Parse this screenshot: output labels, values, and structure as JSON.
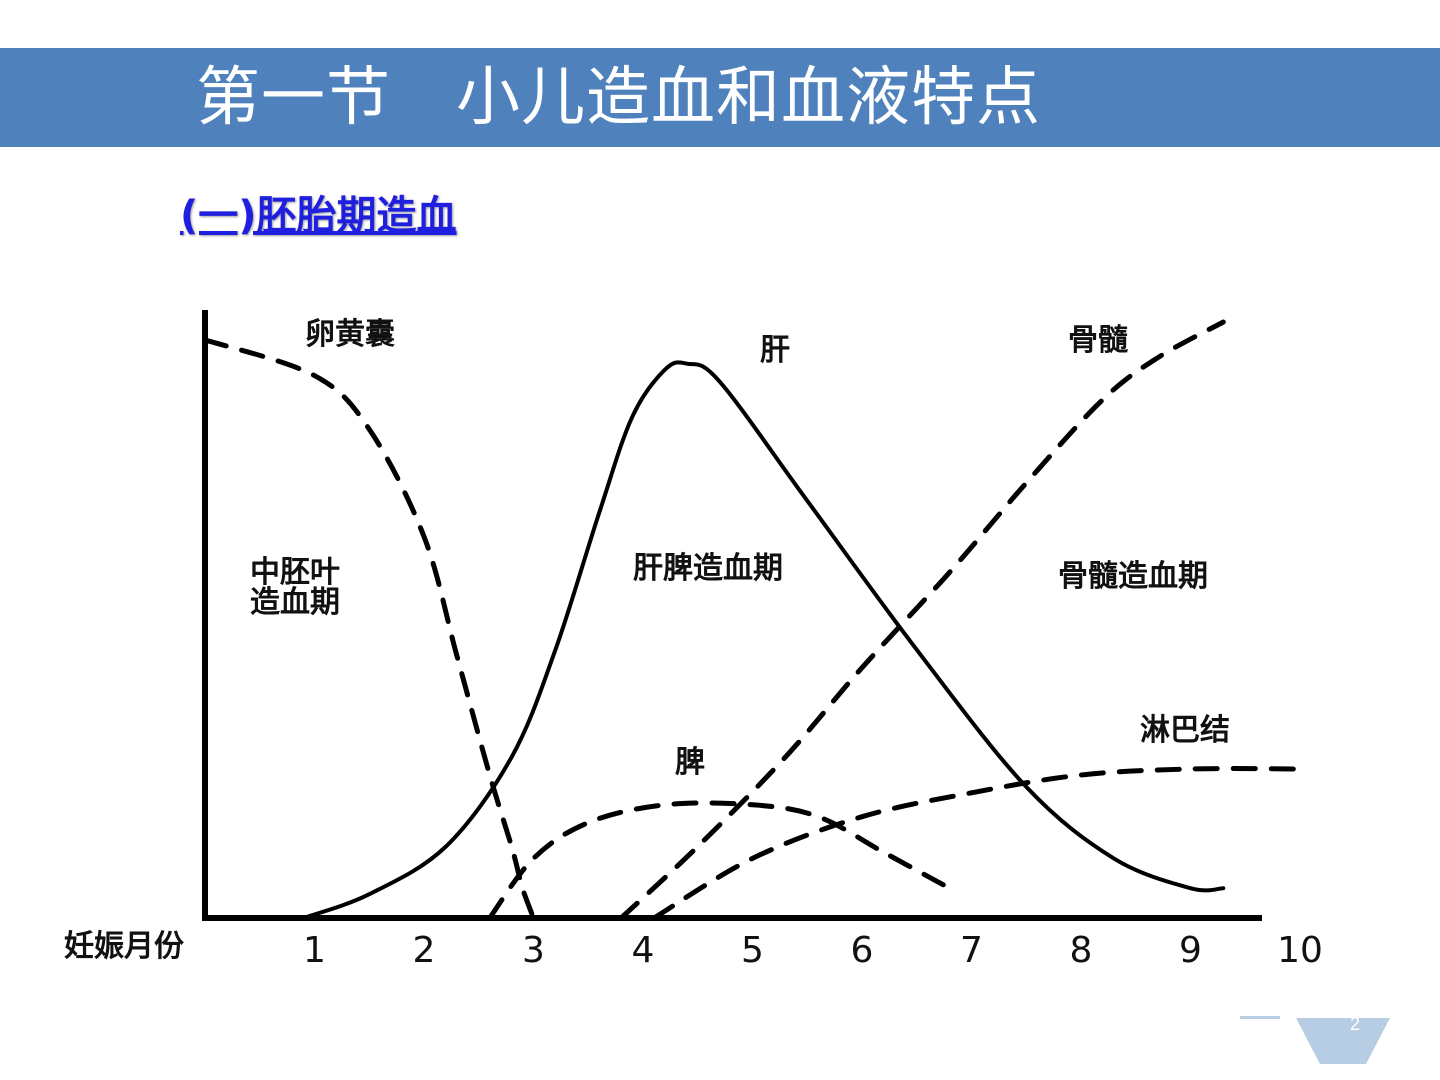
{
  "slide": {
    "title": "第一节　小儿造血和血液特点",
    "subtitle": "(一)胚胎期造血",
    "page_number": "2",
    "accent_color": "#4f81bd",
    "subtitle_color": "#1f1fe0"
  },
  "chart_data": {
    "type": "line",
    "xlabel": "妊娠月份",
    "ylabel": "",
    "x_ticks": [
      "1",
      "2",
      "3",
      "4",
      "5",
      "6",
      "7",
      "8",
      "9",
      "10"
    ],
    "xlim": [
      0,
      10
    ],
    "ylim": [
      0,
      100
    ],
    "grid": false,
    "series": [
      {
        "name": "卵黄囊",
        "style": "dashed",
        "x": [
          0,
          1,
          1.5,
          2,
          2.3,
          2.6,
          2.8,
          2.9,
          3.0
        ],
        "y": [
          97,
          91,
          82,
          64,
          44,
          24,
          12,
          5,
          0
        ]
      },
      {
        "name": "肝",
        "style": "solid",
        "x": [
          0.9,
          1.5,
          2.2,
          2.8,
          3.2,
          3.6,
          3.9,
          4.2,
          4.4,
          4.7,
          5.5,
          6.5,
          7.5,
          8.3,
          9.0,
          9.3
        ],
        "y": [
          0,
          4,
          12,
          27,
          45,
          68,
          84,
          92,
          93,
          90,
          70,
          45,
          22,
          10,
          5,
          5
        ]
      },
      {
        "name": "脾",
        "style": "dashed",
        "x": [
          2.6,
          3.0,
          3.5,
          4.2,
          5.0,
          5.6,
          6.2,
          6.8
        ],
        "y": [
          0,
          10,
          16,
          19,
          19,
          17,
          11,
          5
        ]
      },
      {
        "name": "骨髓",
        "style": "dashed",
        "x": [
          3.8,
          4.5,
          5.3,
          6.0,
          6.8,
          7.5,
          8.2,
          8.7,
          9.3
        ],
        "y": [
          0,
          12,
          27,
          42,
          58,
          73,
          87,
          94,
          100
        ]
      },
      {
        "name": "淋巴结",
        "style": "dashed",
        "x": [
          4.1,
          5.0,
          6.0,
          7.0,
          8.0,
          9.0,
          10.0
        ],
        "y": [
          0,
          10,
          17,
          21,
          24,
          25,
          25
        ]
      }
    ],
    "annotations": {
      "yolk_sac": "卵黄囊",
      "liver": "肝",
      "bone_marrow": "骨髓",
      "mesoderm_line1": "中胚叶",
      "mesoderm_line2": "造血期",
      "liver_spleen_period": "肝脾造血期",
      "bone_marrow_period": "骨髓造血期",
      "lymph_node": "淋巴结",
      "spleen": "脾"
    }
  }
}
